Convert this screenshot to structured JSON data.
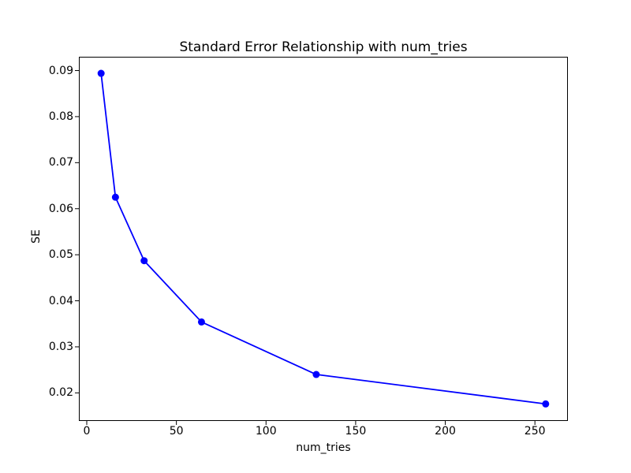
{
  "figure": {
    "background": "#ffffff",
    "text_color": "#000000",
    "spine_color": "#000000"
  },
  "chart_data": {
    "type": "line",
    "title": "Standard Error Relationship with num_tries",
    "xlabel": "num_tries",
    "ylabel": "SE",
    "x": [
      8,
      16,
      32,
      64,
      128,
      256
    ],
    "y": [
      0.0894,
      0.0625,
      0.0487,
      0.0354,
      0.024,
      0.0176
    ],
    "line_color": "#0000ff",
    "marker": "circle",
    "marker_radius": 4.5,
    "line_width": 1.8,
    "xlim": [
      -4.4,
      268.4
    ],
    "ylim": [
      0.0139,
      0.093
    ],
    "xticks": [
      0,
      50,
      100,
      150,
      200,
      250
    ],
    "yticks": [
      0.02,
      0.03,
      0.04,
      0.05,
      0.06,
      0.07,
      0.08,
      0.09
    ],
    "ytick_decimals": 2,
    "grid": false,
    "legend": "none"
  }
}
